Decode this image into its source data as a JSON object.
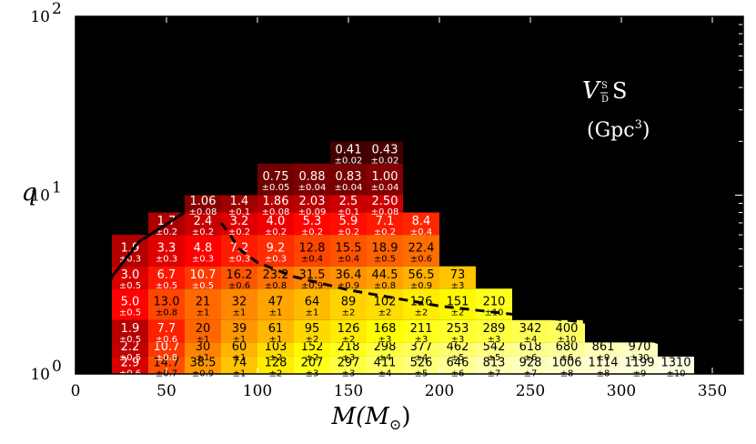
{
  "chart_data": {
    "type": "heatmap",
    "xlabel": "M(M",
    "xlabel_sub": "⊙",
    "xlabel_close": ")",
    "ylabel": "q",
    "xlim": [
      0,
      367
    ],
    "ylim": [
      1,
      100
    ],
    "yscale": "log",
    "xticks": [
      0,
      50,
      100,
      150,
      200,
      250,
      300,
      350
    ],
    "xtick_labels": [
      "0",
      "50",
      "100",
      "150",
      "200",
      "250",
      "300",
      "350"
    ],
    "yticks": [
      1,
      10,
      100
    ],
    "ytick_labels": [
      {
        "base": "10",
        "exp": "0"
      },
      {
        "base": "10",
        "exp": "1"
      },
      {
        "base": "10",
        "exp": "2"
      }
    ],
    "background_color": "#000000",
    "colormap": "hot",
    "annotation": {
      "line1_main": "V",
      "line1_sub_top": "S",
      "line1_sub_bottom": "D",
      "line1_tail": "S",
      "line2": "(Gpc",
      "line2_sup": "3",
      "line2_close": ")"
    },
    "rows": [
      {
        "q_low": 1.0,
        "q_high": 1.25,
        "start_m": 0,
        "cells": [
          [
            "",
            ""
          ],
          [
            "2.9",
            "±0.6"
          ],
          [
            "14.7",
            "±0.7"
          ],
          [
            "38.5",
            "±0.9"
          ],
          [
            "74",
            "±1"
          ],
          [
            "128",
            "±2"
          ],
          [
            "207",
            "±3"
          ],
          [
            "297",
            "±3"
          ],
          [
            "411",
            "±4"
          ],
          [
            "526",
            "±5"
          ],
          [
            "646",
            "±6"
          ],
          [
            "813",
            "±7"
          ],
          [
            "928",
            "±7"
          ],
          [
            "1006",
            "±8"
          ],
          [
            "1114",
            "±8"
          ],
          [
            "1199",
            "±9"
          ],
          [
            "1310",
            "±10"
          ]
        ]
      },
      {
        "q_low": 1.25,
        "q_high": 1.5,
        "start_m": 0,
        "cells": [
          [
            "",
            ""
          ],
          [
            "2.2",
            "±0.5"
          ],
          [
            "10.7",
            "±0.8"
          ],
          [
            "30",
            "±1"
          ],
          [
            "60",
            "±1"
          ],
          [
            "103",
            "±2"
          ],
          [
            "152",
            "±2"
          ],
          [
            "218",
            "±3"
          ],
          [
            "298",
            "±4"
          ],
          [
            "377",
            "±4"
          ],
          [
            "462",
            "±5"
          ],
          [
            "542",
            "±5"
          ],
          [
            "618",
            "±6"
          ],
          [
            "680",
            "±6"
          ],
          [
            "861",
            "±9"
          ],
          [
            "970",
            "±30"
          ]
        ]
      },
      {
        "q_low": 1.5,
        "q_high": 2.0,
        "start_m": 0,
        "cells": [
          [
            "",
            ""
          ],
          [
            "1.9",
            "±0.5"
          ],
          [
            "7.7",
            "±0.6"
          ],
          [
            "20",
            "±1"
          ],
          [
            "39",
            "±1"
          ],
          [
            "61",
            "±1"
          ],
          [
            "95",
            "±2"
          ],
          [
            "126",
            "±2"
          ],
          [
            "168",
            "±3"
          ],
          [
            "211",
            "±3"
          ],
          [
            "253",
            "±3"
          ],
          [
            "289",
            "±3"
          ],
          [
            "342",
            "±4"
          ],
          [
            "400",
            "±10"
          ]
        ]
      },
      {
        "q_low": 2.0,
        "q_high": 3.0,
        "start_m": 20,
        "cells": [
          [
            "5.0",
            "±0.5"
          ],
          [
            "13.0",
            "±0.8"
          ],
          [
            "21",
            "±1"
          ],
          [
            "32",
            "±1"
          ],
          [
            "47",
            "±1"
          ],
          [
            "64",
            "±1"
          ],
          [
            "89",
            "±2"
          ],
          [
            "102",
            "±2"
          ],
          [
            "126",
            "±2"
          ],
          [
            "151",
            "±2"
          ],
          [
            "210",
            "±10"
          ]
        ]
      },
      {
        "q_low": 3.0,
        "q_high": 4.0,
        "start_m": 20,
        "cells": [
          [
            "3.0",
            "±0.5"
          ],
          [
            "6.7",
            "±0.5"
          ],
          [
            "10.7",
            "±0.5"
          ],
          [
            "16.2",
            "±0.6"
          ],
          [
            "23.2",
            "±0.8"
          ],
          [
            "31.5",
            "±0.9"
          ],
          [
            "36.4",
            "±0.9"
          ],
          [
            "44.5",
            "±0.8"
          ],
          [
            "56.5",
            "±0.9"
          ],
          [
            "73",
            "±3"
          ]
        ]
      },
      {
        "q_low": 4.0,
        "q_high": 6.0,
        "start_m": 20,
        "cells": [
          [
            "1.9",
            "±0.3"
          ],
          [
            "3.3",
            "±0.3"
          ],
          [
            "4.8",
            "±0.3"
          ],
          [
            "7.2",
            "±0.3"
          ],
          [
            "9.2",
            "±0.3"
          ],
          [
            "12.8",
            "±0.4"
          ],
          [
            "15.5",
            "±0.4"
          ],
          [
            "18.9",
            "±0.5"
          ],
          [
            "22.4",
            "±0.6"
          ]
        ]
      },
      {
        "q_low": 6.0,
        "q_high": 8.0,
        "start_m": 40,
        "cells": [
          [
            "1.7",
            "±0.2"
          ],
          [
            "2.4",
            "±0.2"
          ],
          [
            "3.2",
            "±0.2"
          ],
          [
            "4.0",
            "±0.2"
          ],
          [
            "5.3",
            "±0.2"
          ],
          [
            "5.9",
            "±0.2"
          ],
          [
            "7.1",
            "±0.2"
          ],
          [
            "8.4",
            "±0.4"
          ]
        ]
      },
      {
        "q_low": 8.0,
        "q_high": 10.0,
        "start_m": 60,
        "cells": [
          [
            "1.06",
            "±0.08"
          ],
          [
            "1.4",
            "±0.1"
          ],
          [
            "1.86",
            "±0.08"
          ],
          [
            "2.03",
            "±0.09"
          ],
          [
            "2.5",
            "±0.1"
          ],
          [
            "2.50",
            "±0.08"
          ]
        ]
      },
      {
        "q_low": 10.0,
        "q_high": 15.0,
        "start_m": 100,
        "cells": [
          [
            "0.75",
            "±0.05"
          ],
          [
            "0.88",
            "±0.04"
          ],
          [
            "0.83",
            "±0.04"
          ],
          [
            "1.00",
            "±0.04"
          ]
        ]
      },
      {
        "q_low": 15.0,
        "q_high": 20.0,
        "start_m": 140,
        "cells": [
          [
            "0.41",
            "±0.02"
          ],
          [
            "0.43",
            "±0.02"
          ]
        ]
      }
    ],
    "cell_width_m": 20,
    "curves": {
      "solid_left": [
        [
          5,
          1.0
        ],
        [
          10,
          1.5
        ],
        [
          15,
          2.5
        ],
        [
          20,
          3.5
        ],
        [
          35,
          5.5
        ],
        [
          60,
          8.0
        ]
      ],
      "dashed": [
        [
          80,
          7.0
        ],
        [
          85,
          6.0
        ],
        [
          90,
          5.0
        ],
        [
          100,
          4.2
        ],
        [
          120,
          3.5
        ],
        [
          150,
          2.95
        ],
        [
          200,
          2.4
        ],
        [
          250,
          2.1
        ],
        [
          290,
          1.9
        ]
      ],
      "solid_right": [
        [
          212,
          9.5
        ],
        [
          215,
          7.0
        ],
        [
          220,
          5.0
        ],
        [
          230,
          3.8
        ],
        [
          250,
          2.8
        ],
        [
          280,
          2.0
        ],
        [
          320,
          1.5
        ],
        [
          367,
          1.15
        ]
      ]
    }
  }
}
